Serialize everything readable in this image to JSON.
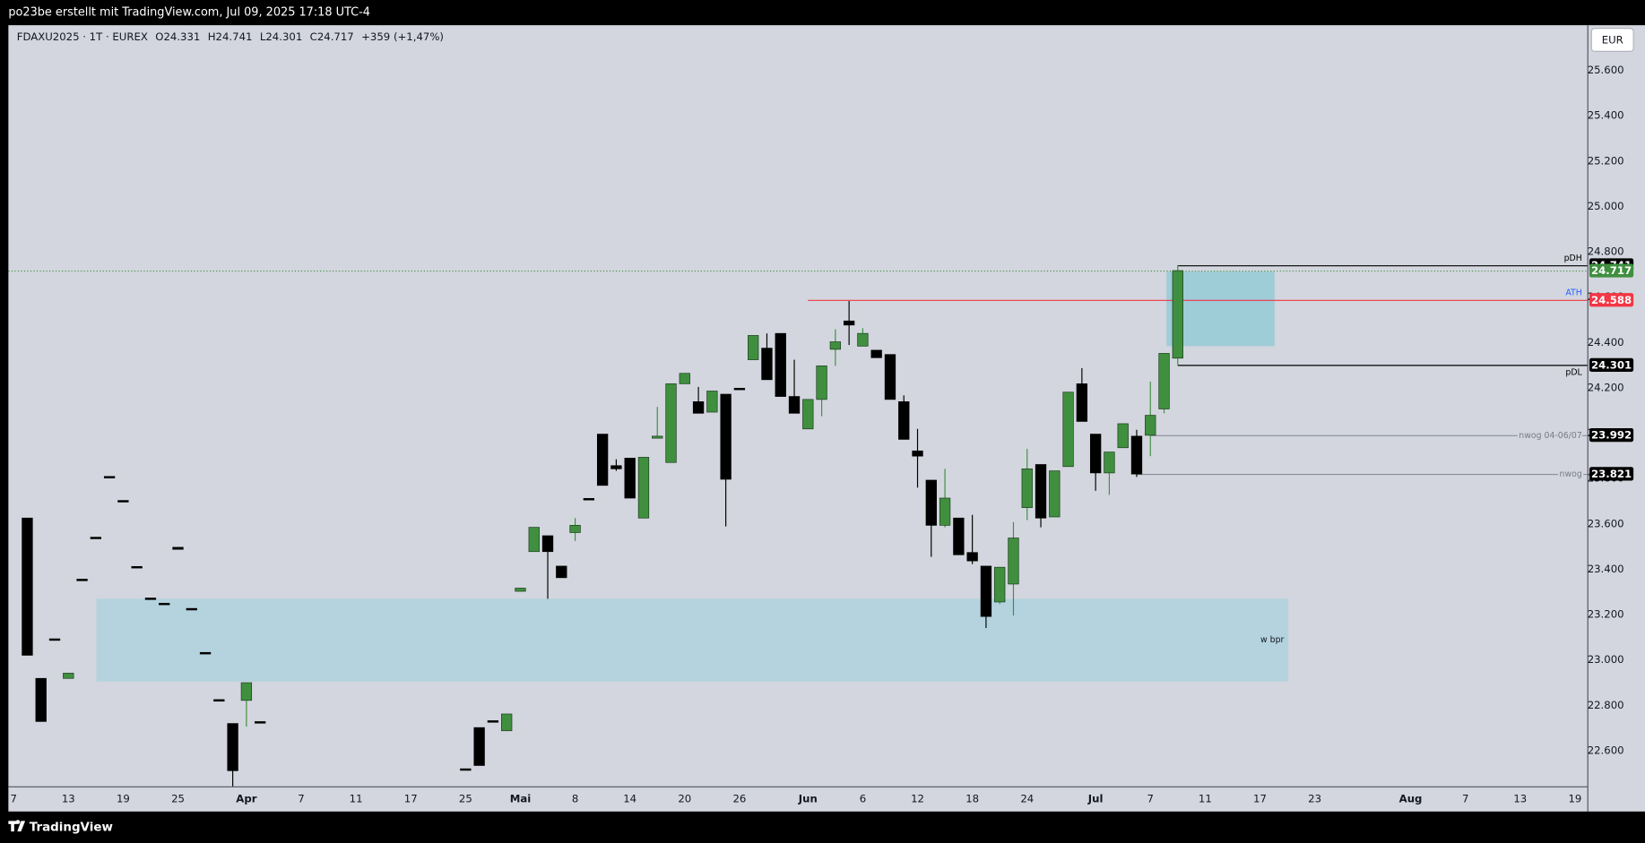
{
  "header": {
    "caption": "po23be erstellt mit TradingView.com, Jul 09, 2025 17:18 UTC-4",
    "symbol": "FDAXU2025 · 1T · EUREX",
    "open": "O24.331",
    "high": "H24.741",
    "low": "L24.301",
    "close": "C24.717",
    "change": "+359 (+1,47%)",
    "currency": "EUR"
  },
  "footer": {
    "brand": "TradingView"
  },
  "chart_data": {
    "type": "candlestick",
    "up_color": "#3f8f3f",
    "down_color": "#000000",
    "x": [
      0,
      1,
      2,
      3,
      4,
      5,
      6,
      7,
      8,
      9,
      10,
      11,
      12,
      13,
      14,
      15,
      16,
      17,
      32,
      33,
      34,
      35,
      36,
      37,
      38,
      39,
      40,
      41,
      42,
      43,
      44,
      45,
      46,
      47,
      48,
      49,
      50,
      51,
      52,
      53,
      54,
      55,
      56,
      57,
      58,
      59,
      60,
      61,
      62,
      63,
      64,
      65,
      66,
      67,
      68,
      69,
      70,
      71,
      72,
      73,
      74,
      75,
      76,
      77,
      78,
      79,
      80,
      81,
      82,
      83,
      84
    ],
    "open": [
      23626,
      22919,
      23090,
      22919,
      23353,
      23538,
      23806,
      23700,
      23409,
      23270,
      23247,
      23497,
      23224,
      23030,
      22822,
      22720,
      22822,
      22725,
      22517,
      22702,
      22729,
      22688,
      23303,
      23478,
      23548,
      23414,
      23562,
      23709,
      23996,
      23857,
      23890,
      23626,
      23978,
      23871,
      24218,
      24139,
      24093,
      24172,
      24195,
      24324,
      24375,
      24440,
      24162,
      24019,
      24149,
      24370,
      24495,
      24384,
      24366,
      24347,
      24139,
      23922,
      23793,
      23594,
      23626,
      23474,
      23414,
      23256,
      23335,
      23672,
      23862,
      23631,
      23853,
      24218,
      23996,
      23825,
      23936,
      23987,
      23991,
      24107,
      24331
    ],
    "high": [
      23626,
      22919,
      23090,
      22942,
      23353,
      23538,
      23806,
      23700,
      23409,
      23270,
      23247,
      23497,
      23224,
      23030,
      22822,
      22720,
      22900,
      22725,
      22517,
      22702,
      22729,
      22762,
      23317,
      23585,
      23548,
      23414,
      23626,
      23709,
      23996,
      23885,
      23890,
      23894,
      24116,
      24218,
      24264,
      24204,
      24186,
      24172,
      24195,
      24431,
      24440,
      24440,
      24324,
      24149,
      24297,
      24458,
      24583,
      24463,
      24366,
      24347,
      24167,
      24019,
      23793,
      23843,
      23626,
      23640,
      23414,
      23409,
      23608,
      23931,
      23862,
      23834,
      24181,
      24287,
      23996,
      23917,
      24042,
      24015,
      24227,
      24352,
      24741
    ],
    "low": [
      23021,
      22729,
      23090,
      22919,
      23353,
      23538,
      23806,
      23700,
      23409,
      23270,
      23247,
      23488,
      23224,
      23030,
      22822,
      22443,
      22706,
      22725,
      22517,
      22535,
      22729,
      22688,
      23303,
      23478,
      23270,
      23363,
      23525,
      23709,
      23770,
      23834,
      23714,
      23626,
      23978,
      23871,
      24218,
      24088,
      24093,
      23589,
      24195,
      24324,
      24236,
      24162,
      24088,
      24019,
      24075,
      24297,
      24389,
      24384,
      24333,
      24149,
      23973,
      23760,
      23455,
      23585,
      23464,
      23423,
      23141,
      23247,
      23196,
      23617,
      23585,
      23631,
      23853,
      24052,
      23746,
      23728,
      23936,
      23807,
      23899,
      24088,
      24301
    ],
    "close": [
      23021,
      22729,
      23090,
      22942,
      23353,
      23538,
      23806,
      23700,
      23409,
      23270,
      23247,
      23488,
      23224,
      23030,
      22822,
      22512,
      22900,
      22725,
      22517,
      22535,
      22729,
      22762,
      23317,
      23585,
      23478,
      23363,
      23594,
      23709,
      23770,
      23843,
      23714,
      23894,
      23987,
      24218,
      24264,
      24088,
      24186,
      23797,
      24195,
      24431,
      24236,
      24162,
      24088,
      24149,
      24297,
      24403,
      24477,
      24440,
      24333,
      24149,
      23973,
      23899,
      23594,
      23714,
      23464,
      23437,
      23192,
      23409,
      23538,
      23843,
      23626,
      23834,
      24181,
      24052,
      23825,
      23917,
      24042,
      23820,
      24079,
      24352,
      24717
    ],
    "xlim": [
      -1.38,
      113.9
    ],
    "ylim": [
      22443,
      25799
    ],
    "xticks": [
      {
        "value": -1,
        "label": "7"
      },
      {
        "value": 3,
        "label": "13"
      },
      {
        "value": 7,
        "label": "19"
      },
      {
        "value": 11,
        "label": "25"
      },
      {
        "value": 16,
        "label": "Apr"
      },
      {
        "value": 20,
        "label": "7"
      },
      {
        "value": 24,
        "label": "11"
      },
      {
        "value": 28,
        "label": "17"
      },
      {
        "value": 32,
        "label": "25"
      },
      {
        "value": 36,
        "label": "Mai"
      },
      {
        "value": 40,
        "label": "8"
      },
      {
        "value": 44,
        "label": "14"
      },
      {
        "value": 48,
        "label": "20"
      },
      {
        "value": 52,
        "label": "26"
      },
      {
        "value": 57,
        "label": "Jun"
      },
      {
        "value": 61,
        "label": "6"
      },
      {
        "value": 65,
        "label": "12"
      },
      {
        "value": 69,
        "label": "18"
      },
      {
        "value": 73,
        "label": "24"
      },
      {
        "value": 78,
        "label": "Jul"
      },
      {
        "value": 82,
        "label": "7"
      },
      {
        "value": 86,
        "label": "11"
      },
      {
        "value": 90,
        "label": "17"
      },
      {
        "value": 94,
        "label": "23"
      },
      {
        "value": 101,
        "label": "Aug"
      },
      {
        "value": 105,
        "label": "7"
      },
      {
        "value": 109,
        "label": "13"
      },
      {
        "value": 113,
        "label": "19"
      }
    ],
    "yticks": [
      {
        "value": 22600,
        "label": "22.600"
      },
      {
        "value": 22800,
        "label": "22.800"
      },
      {
        "value": 23000,
        "label": "23.000"
      },
      {
        "value": 23200,
        "label": "23.200"
      },
      {
        "value": 23400,
        "label": "23.400"
      },
      {
        "value": 23600,
        "label": "23.600"
      },
      {
        "value": 23800,
        "label": "23.800"
      },
      {
        "value": 24000,
        "label": "24.000"
      },
      {
        "value": 24200,
        "label": "24.200"
      },
      {
        "value": 24400,
        "label": "24.400"
      },
      {
        "value": 24600,
        "label": "24.600"
      },
      {
        "value": 24800,
        "label": "24.800"
      },
      {
        "value": 25000,
        "label": "25.000"
      },
      {
        "value": 25200,
        "label": "25.200"
      },
      {
        "value": 25400,
        "label": "25.400"
      },
      {
        "value": 25600,
        "label": "25.600"
      }
    ],
    "zones": [
      {
        "label": "w bpr",
        "x": [
          5.05,
          92.07
        ],
        "y": [
          22905,
          23270
        ],
        "color": "#a9d1de"
      },
      {
        "x": [
          83.18,
          91.07
        ],
        "y": [
          24384,
          24713
        ],
        "color": "#8cc8d4"
      }
    ],
    "levels": [
      {
        "label": "pDH",
        "value": 24741,
        "price_label": "24.741",
        "line_color": "#000000",
        "price_color": "#000000",
        "label_color": "#000000",
        "label_position": "above",
        "start": 84
      },
      {
        "value": 24717,
        "price_label": "24.717",
        "line_color": "#3f8f3f",
        "price_color": "#3f8f3f",
        "style": "dotted"
      },
      {
        "label": "ATH",
        "value": 24588,
        "price_label": "24.588",
        "line_color": "#f23645",
        "price_color": "#f23645",
        "label_color": "#2962ff",
        "label_position": "above",
        "start": 57
      },
      {
        "label": "pDL",
        "value": 24301,
        "price_label": "24.301",
        "line_color": "#000000",
        "price_color": "#000000",
        "label_color": "#000000",
        "label_position": "below",
        "start": 84
      },
      {
        "label": "nwog 04-06/07",
        "value": 23992,
        "price_label": "23.992",
        "line_color": "#8a8d96",
        "price_color": "#000000",
        "label_color": "#787b86",
        "label_position": "on",
        "start": 82
      },
      {
        "label": "nwog",
        "value": 23821,
        "price_label": "23.821",
        "line_color": "#8a8d96",
        "price_color": "#000000",
        "label_color": "#787b86",
        "label_position": "on",
        "start": 81
      }
    ]
  }
}
